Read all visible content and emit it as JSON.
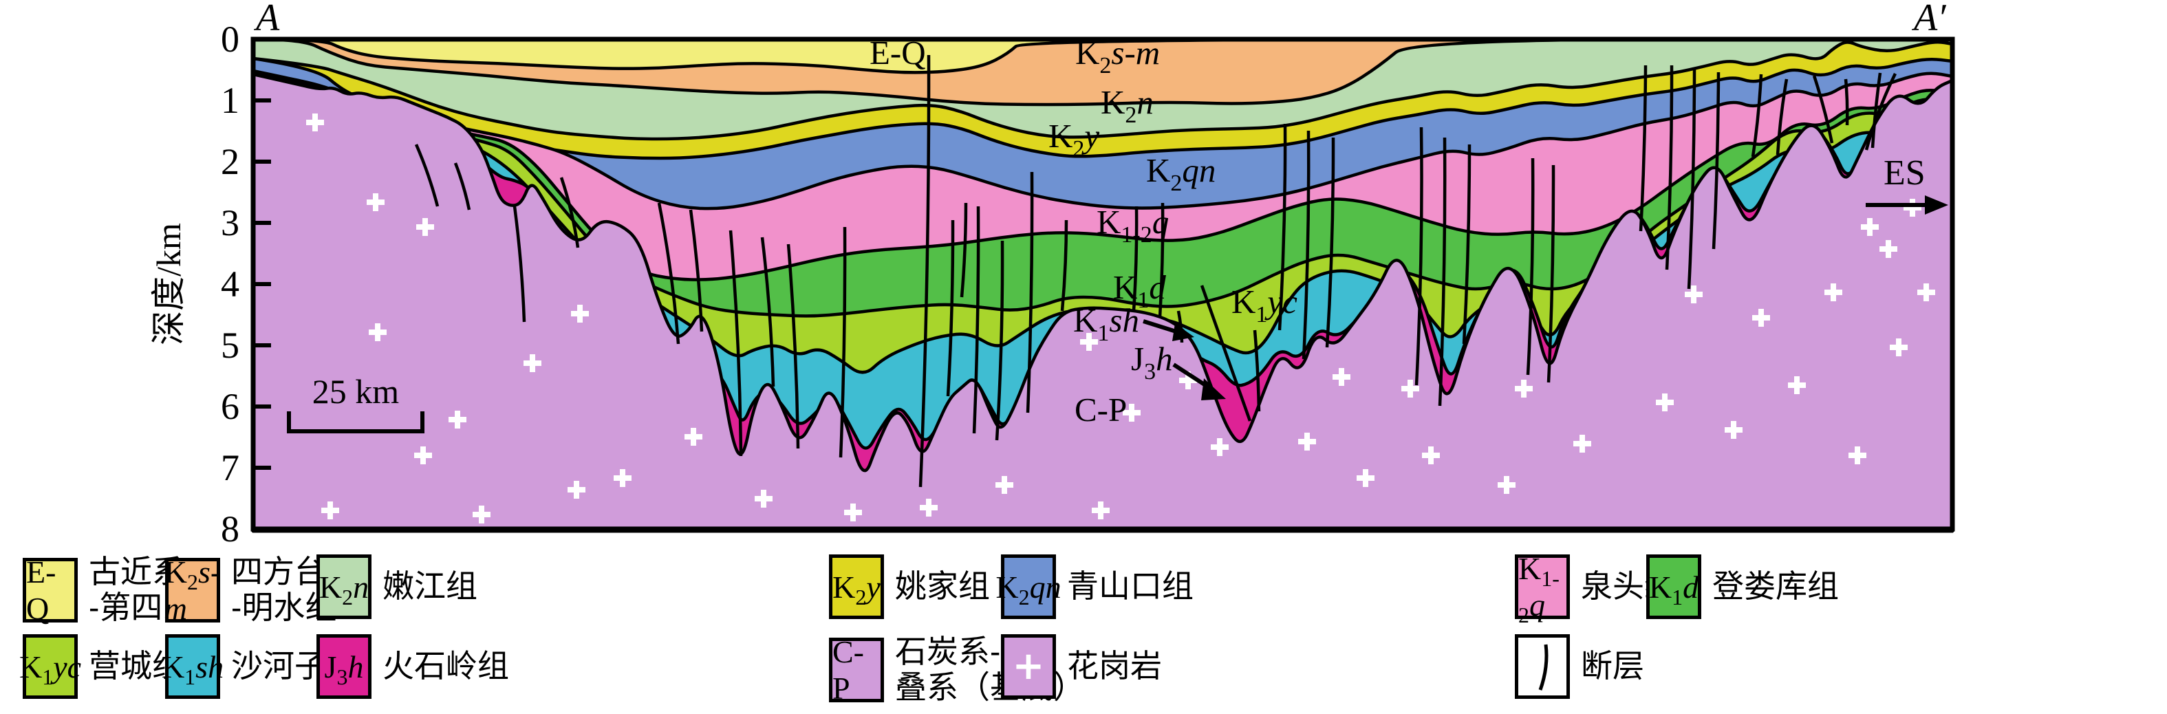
{
  "figure": {
    "left_end_label": "A",
    "right_end_label": "A′",
    "direction_label": "ES",
    "scale_bar_label": "25 km"
  },
  "axis": {
    "title": "深度/km",
    "ticks": [
      "0",
      "1",
      "2",
      "3",
      "4",
      "5",
      "6",
      "7",
      "8"
    ]
  },
  "units": [
    {
      "id": "EQ",
      "code_pre": "E-Q",
      "code_sub": "",
      "code_it": "",
      "name": [
        "古近系",
        "-第四系"
      ],
      "color": "#f2ee7c"
    },
    {
      "id": "K2sm",
      "code_pre": "K",
      "code_sub": "2",
      "code_it": "s-m",
      "name": [
        "四方台组",
        "-明水组"
      ],
      "color": "#f5b67c"
    },
    {
      "id": "K2n",
      "code_pre": "K",
      "code_sub": "2",
      "code_it": "n",
      "name": [
        "嫩江组"
      ],
      "color": "#b9dcb0"
    },
    {
      "id": "K2y",
      "code_pre": "K",
      "code_sub": "2",
      "code_it": "y",
      "name": [
        "姚家组"
      ],
      "color": "#ded71f"
    },
    {
      "id": "K2qn",
      "code_pre": "K",
      "code_sub": "2",
      "code_it": "qn",
      "name": [
        "青山口组"
      ],
      "color": "#6f92d2"
    },
    {
      "id": "K12q",
      "code_pre": "K",
      "code_sub": "1-2",
      "code_it": "q",
      "name": [
        "泉头组"
      ],
      "color": "#f191cb"
    },
    {
      "id": "K1d",
      "code_pre": "K",
      "code_sub": "1",
      "code_it": "d",
      "name": [
        "登娄库组"
      ],
      "color": "#53bf48"
    },
    {
      "id": "K1yc",
      "code_pre": "K",
      "code_sub": "1",
      "code_it": "yc",
      "name": [
        "营城组"
      ],
      "color": "#a8d52c"
    },
    {
      "id": "K1sh",
      "code_pre": "K",
      "code_sub": "1",
      "code_it": "sh",
      "name": [
        "沙河子组"
      ],
      "color": "#3fbdd2"
    },
    {
      "id": "J3h",
      "code_pre": "J",
      "code_sub": "3",
      "code_it": "h",
      "name": [
        "火石岭组"
      ],
      "color": "#de2295"
    },
    {
      "id": "CP",
      "code_pre": "C-P",
      "code_sub": "",
      "code_it": "",
      "name": [
        "石炭系-二",
        "叠系（基底）"
      ],
      "color": "#d09cda"
    },
    {
      "id": "granite",
      "code_pre": "",
      "code_sub": "",
      "code_it": "",
      "name": [
        "花岗岩"
      ],
      "color": "#d09cda",
      "symbol": "+"
    },
    {
      "id": "fault",
      "code_pre": "",
      "code_sub": "",
      "code_it": "",
      "name": [
        "断层"
      ],
      "color": "#ffffff"
    }
  ],
  "colors": {
    "outline": "#000000",
    "background": "#ffffff",
    "granite_cross": "#ffffff"
  }
}
